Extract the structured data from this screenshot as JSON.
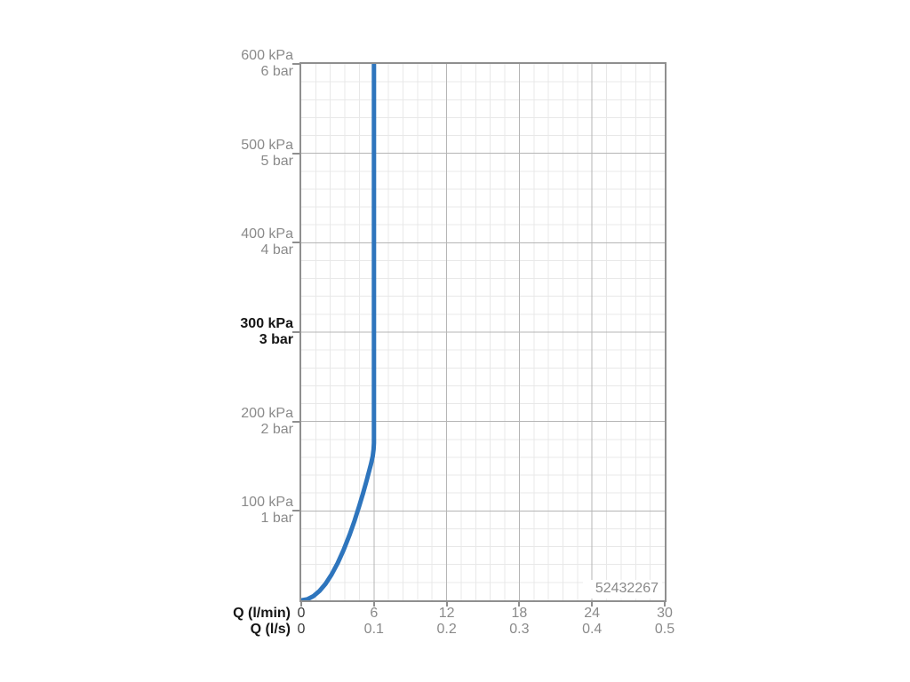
{
  "chart_data": {
    "type": "line",
    "x_axis": {
      "title_primary": "Q (l/min)",
      "title_secondary": "Q (l/s)",
      "range_lmin": [
        0,
        30
      ],
      "ticks": [
        {
          "lmin": 0,
          "label_lmin": "0",
          "label_ls": "0",
          "strong": true
        },
        {
          "lmin": 6,
          "label_lmin": "6",
          "label_ls": "0.1",
          "strong": false
        },
        {
          "lmin": 12,
          "label_lmin": "12",
          "label_ls": "0.2",
          "strong": false
        },
        {
          "lmin": 18,
          "label_lmin": "18",
          "label_ls": "0.3",
          "strong": false
        },
        {
          "lmin": 24,
          "label_lmin": "24",
          "label_ls": "0.4",
          "strong": false
        },
        {
          "lmin": 30,
          "label_lmin": "30",
          "label_ls": "0.5",
          "strong": false
        }
      ]
    },
    "y_axis": {
      "range_kpa": [
        0,
        600
      ],
      "ticks": [
        {
          "kpa": 600,
          "label_kpa": "600 kPa",
          "label_bar": "6 bar",
          "bold": false
        },
        {
          "kpa": 500,
          "label_kpa": "500 kPa",
          "label_bar": "5 bar",
          "bold": false
        },
        {
          "kpa": 400,
          "label_kpa": "400 kPa",
          "label_bar": "4 bar",
          "bold": false
        },
        {
          "kpa": 300,
          "label_kpa": "300 kPa",
          "label_bar": "3 bar",
          "bold": true
        },
        {
          "kpa": 200,
          "label_kpa": "200 kPa",
          "label_bar": "2 bar",
          "bold": false
        },
        {
          "kpa": 100,
          "label_kpa": "100 kPa",
          "label_bar": "1 bar",
          "bold": false
        }
      ]
    },
    "grid": {
      "majors_x": 5,
      "majors_y": 6,
      "minor_divisions_per_major_x": 5,
      "minor_divisions_per_major_y": 5
    },
    "series": [
      {
        "name": "flow-pressure-curve",
        "color": "#2e75bd",
        "points_lmin_kpa": [
          [
            0,
            0
          ],
          [
            0.5,
            1.2
          ],
          [
            1,
            4.6
          ],
          [
            1.5,
            10.4
          ],
          [
            2,
            18.4
          ],
          [
            2.5,
            28.8
          ],
          [
            3,
            41.4
          ],
          [
            3.5,
            56.4
          ],
          [
            4,
            73.6
          ],
          [
            4.4,
            89.1
          ],
          [
            4.8,
            106
          ],
          [
            5.1,
            119.6
          ],
          [
            5.4,
            134.1
          ],
          [
            5.6,
            144.3
          ],
          [
            5.75,
            152.2
          ],
          [
            5.9,
            161
          ],
          [
            5.97,
            169
          ],
          [
            6,
            176
          ],
          [
            6,
            600
          ]
        ]
      }
    ],
    "annotation": "52432267"
  },
  "colors": {
    "background": "#ffffff",
    "plot_border": "#8f8f8f",
    "grid_major": "#b5b5b5",
    "grid_minor": "#e8e8e8",
    "label_gray": "#8a8a8a",
    "label_dark": "#151515",
    "curve_blue": "#2e75bd"
  }
}
